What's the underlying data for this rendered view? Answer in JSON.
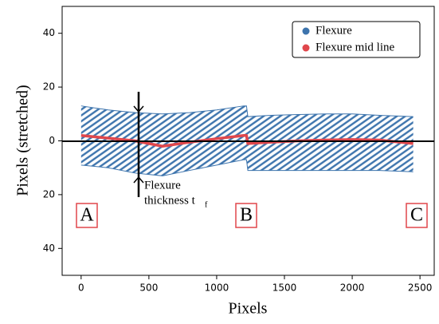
{
  "chart_data": {
    "type": "band",
    "xlabel": "Pixels",
    "ylabel": "Pixels (stretched)",
    "x": [
      0,
      200,
      400,
      600,
      800,
      1000,
      1200,
      1220,
      1230,
      1400,
      1600,
      1800,
      2000,
      2200,
      2450
    ],
    "series": [
      {
        "name": "Flexure",
        "color": "#3d74ad",
        "values": [
          13,
          11.5,
          10.5,
          10,
          10.5,
          11.5,
          13,
          13,
          9,
          9.5,
          9.8,
          10,
          10,
          9.5,
          9
        ],
        "lower": [
          -9,
          -10,
          -12,
          -13,
          -11,
          -9,
          -7,
          -7,
          -11,
          -11,
          -11,
          -11,
          -11,
          -11,
          -11.5
        ]
      },
      {
        "name": "Flexure mid line",
        "color": "#e0474c",
        "values": [
          2,
          1,
          0,
          -2,
          -0.5,
          0.8,
          2,
          2,
          -1,
          -0.5,
          0,
          0.3,
          0.5,
          0.3,
          -1
        ]
      }
    ],
    "xlim": [
      -140,
      2605
    ],
    "ylim": [
      -50,
      50
    ],
    "xticks": [
      0,
      500,
      1000,
      1500,
      2000,
      2500
    ],
    "yticks": [
      40,
      20,
      0,
      {
        "value": -20,
        "label": "20"
      },
      {
        "value": -40,
        "label": "40"
      }
    ],
    "legend": "upper right",
    "annotations": {
      "thickness": "Flexure",
      "thickness2": "thickness t",
      "subscript": "f",
      "a": "A",
      "b": "B",
      "c": "C"
    }
  }
}
